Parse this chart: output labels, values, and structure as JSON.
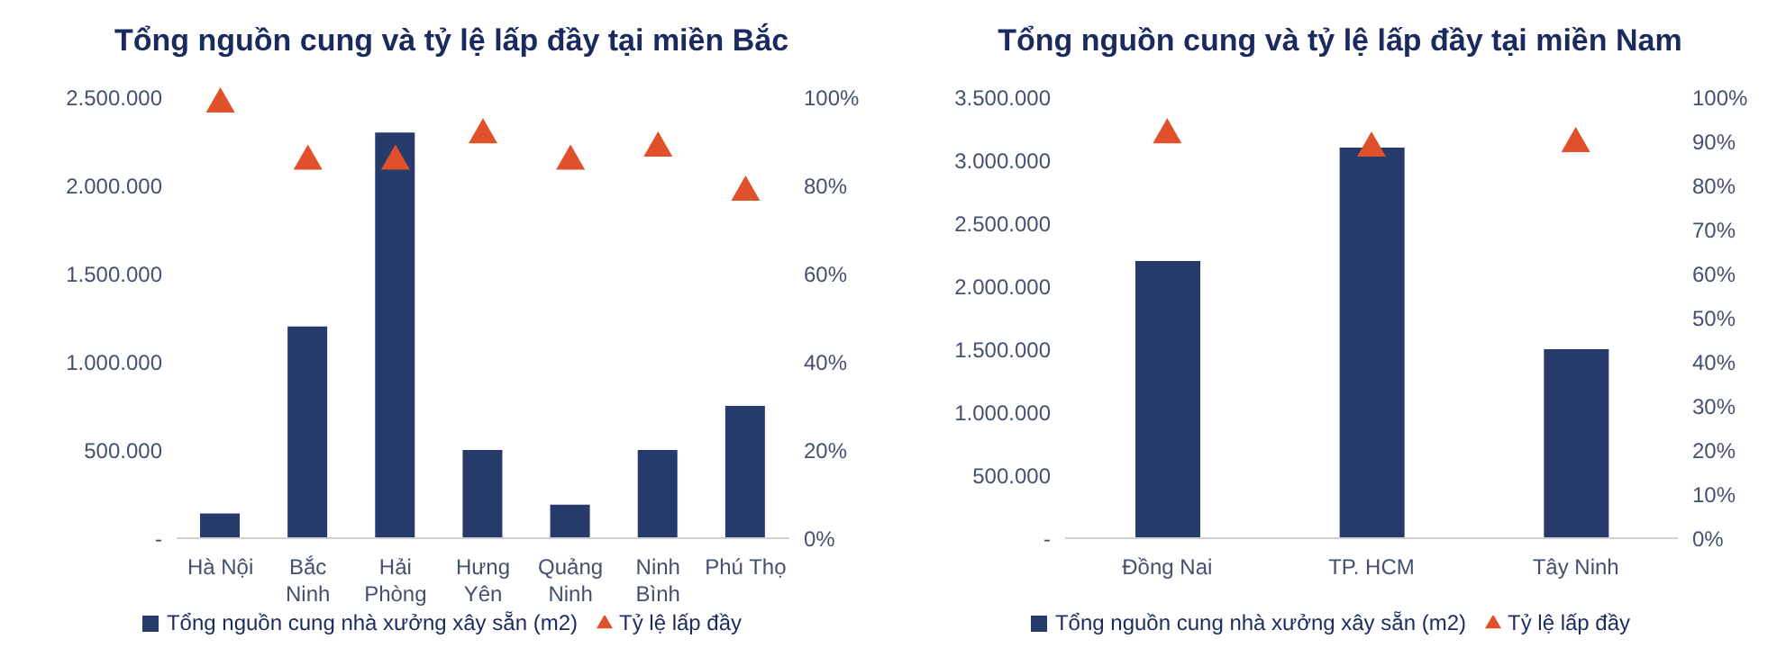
{
  "chart_data": [
    {
      "type": "bar",
      "title": "Tổng nguồn cung và tỷ lệ lấp đầy tại miền Bắc",
      "categories": [
        "Hà Nội",
        "Bắc\nNinh",
        "Hải\nPhòng",
        "Hưng\nYên",
        "Quảng\nNinh",
        "Ninh\nBình",
        "Phú Thọ"
      ],
      "series": [
        {
          "name": "Tổng nguồn cung nhà xưởng xây sẵn (m2)",
          "color": "#263a6b",
          "values": [
            140000,
            1200000,
            2300000,
            500000,
            190000,
            500000,
            750000
          ]
        },
        {
          "name": "Tỷ lệ lấp đầy",
          "type": "scatter",
          "axis": "y2",
          "color": "#e0502a",
          "values": [
            99,
            86,
            86,
            92,
            86,
            89,
            79
          ]
        }
      ],
      "ylim": [
        0,
        2500000
      ],
      "yticks": [
        {
          "value": 0,
          "label": "-"
        },
        {
          "value": 500000,
          "label": "500.000"
        },
        {
          "value": 1000000,
          "label": "1.000.000"
        },
        {
          "value": 1500000,
          "label": "1.500.000"
        },
        {
          "value": 2000000,
          "label": "2.000.000"
        },
        {
          "value": 2500000,
          "label": "2.500.000"
        }
      ],
      "y2lim": [
        0,
        100
      ],
      "y2ticks": [
        {
          "value": 0,
          "label": "0%"
        },
        {
          "value": 20,
          "label": "20%"
        },
        {
          "value": 40,
          "label": "40%"
        },
        {
          "value": 60,
          "label": "60%"
        },
        {
          "value": 80,
          "label": "80%"
        },
        {
          "value": 100,
          "label": "100%"
        }
      ],
      "marker": "triangle",
      "grid": false,
      "legend": "bottom"
    },
    {
      "type": "bar",
      "title": "Tổng nguồn cung và tỷ lệ lấp đầy tại miền Nam",
      "categories": [
        "Đồng Nai",
        "TP. HCM",
        "Tây Ninh"
      ],
      "series": [
        {
          "name": "Tổng nguồn cung nhà xưởng xây sẵn (m2)",
          "color": "#263a6b",
          "values": [
            2200000,
            3100000,
            1500000
          ]
        },
        {
          "name": "Tỷ lệ lấp đầy",
          "type": "scatter",
          "axis": "y2",
          "color": "#e0502a",
          "values": [
            92,
            89,
            90
          ]
        }
      ],
      "ylim": [
        0,
        3500000
      ],
      "yticks": [
        {
          "value": 0,
          "label": "-"
        },
        {
          "value": 500000,
          "label": "500.000"
        },
        {
          "value": 1000000,
          "label": "1.000.000"
        },
        {
          "value": 1500000,
          "label": "1.500.000"
        },
        {
          "value": 2000000,
          "label": "2.000.000"
        },
        {
          "value": 2500000,
          "label": "2.500.000"
        },
        {
          "value": 3000000,
          "label": "3.000.000"
        },
        {
          "value": 3500000,
          "label": "3.500.000"
        }
      ],
      "y2lim": [
        0,
        100
      ],
      "y2ticks": [
        {
          "value": 0,
          "label": "0%"
        },
        {
          "value": 10,
          "label": "10%"
        },
        {
          "value": 20,
          "label": "20%"
        },
        {
          "value": 30,
          "label": "30%"
        },
        {
          "value": 40,
          "label": "40%"
        },
        {
          "value": 50,
          "label": "50%"
        },
        {
          "value": 60,
          "label": "60%"
        },
        {
          "value": 70,
          "label": "70%"
        },
        {
          "value": 80,
          "label": "80%"
        },
        {
          "value": 90,
          "label": "90%"
        },
        {
          "value": 100,
          "label": "100%"
        }
      ],
      "marker": "triangle",
      "grid": false,
      "legend": "bottom"
    }
  ]
}
